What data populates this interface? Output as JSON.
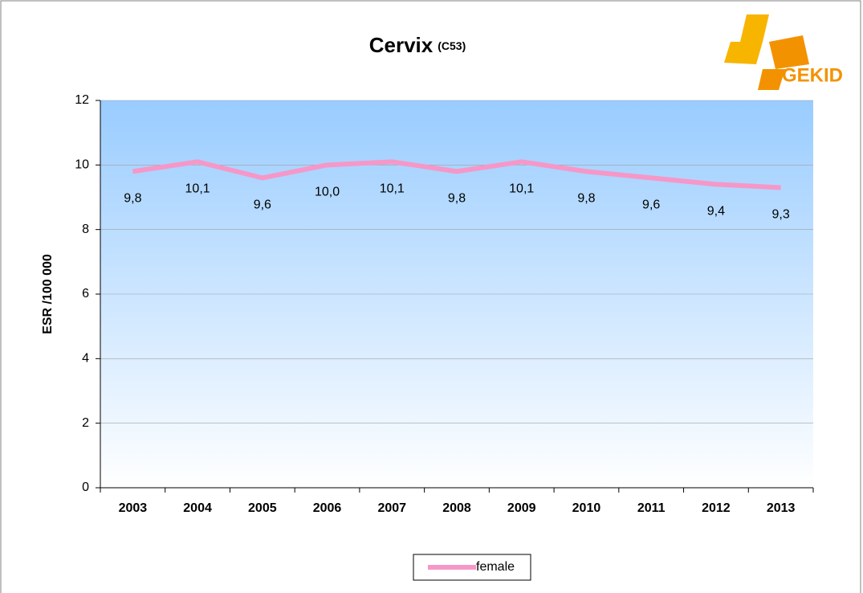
{
  "chart_data": {
    "type": "line",
    "title": "Cervix",
    "subtitle": "(C53)",
    "y_label": "ESR /100 000",
    "categories": [
      "2003",
      "2004",
      "2005",
      "2006",
      "2007",
      "2008",
      "2009",
      "2010",
      "2011",
      "2012",
      "2013"
    ],
    "series": [
      {
        "name": "female",
        "color": "#f598c8",
        "values": [
          9.8,
          10.1,
          9.6,
          10.0,
          10.1,
          9.8,
          10.1,
          9.8,
          9.6,
          9.4,
          9.3
        ],
        "value_labels": [
          "9,8",
          "10,1",
          "9,6",
          "10,0",
          "10,1",
          "9,8",
          "10,1",
          "9,8",
          "9,6",
          "9,4",
          "9,3"
        ]
      }
    ],
    "ylim": [
      0,
      12
    ],
    "yticks": [
      0,
      2,
      4,
      6,
      8,
      10,
      12
    ],
    "grid": true,
    "legend": "bottom"
  },
  "logo": {
    "text": "GEKID"
  }
}
